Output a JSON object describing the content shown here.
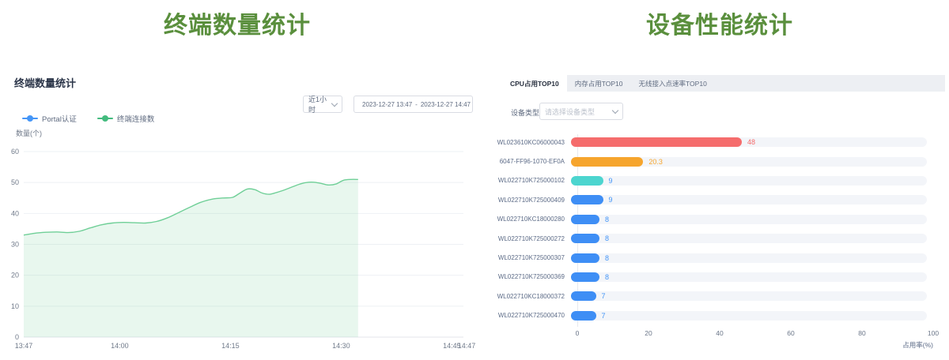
{
  "left_panel": {
    "big_title": "终端数量统计",
    "header": "终端数量统计",
    "range_select": {
      "value": "近1小时"
    },
    "date_range": {
      "start": "2023-12-27 13:47",
      "separator": "-",
      "end": "2023-12-27 14:47"
    },
    "legend": [
      {
        "label": "Portal认证",
        "color": "#4596f7"
      },
      {
        "label": "终端连接数",
        "color": "#43bb7e"
      }
    ],
    "ylabel": "数量(个)"
  },
  "right_panel": {
    "big_title": "设备性能统计",
    "tabs": [
      {
        "label": "CPU占用TOP10",
        "active": true
      },
      {
        "label": "内存占用TOP10",
        "active": false
      },
      {
        "label": "无线接入点速率TOP10",
        "active": false
      }
    ],
    "device_type_label": "设备类型",
    "device_type_placeholder": "请选择设备类型",
    "xlabel": "占用率(%)"
  },
  "chart_data": [
    {
      "type": "area",
      "title": "终端数量统计",
      "ylabel": "数量(个)",
      "ylim": [
        0,
        60
      ],
      "y_ticks": [
        "0",
        "10",
        "20",
        "30",
        "40",
        "50",
        "60"
      ],
      "x_start": "13:47",
      "x_end": "14:47",
      "x_ticks": [
        {
          "label": "13:47",
          "minute": 0
        },
        {
          "label": "14:00",
          "minute": 13
        },
        {
          "label": "14:15",
          "minute": 28
        },
        {
          "label": "14:30",
          "minute": 43
        },
        {
          "label": "14:45",
          "minute": 58
        },
        {
          "label": "14:47",
          "minute": 60
        }
      ],
      "grid": true,
      "legend_position": "top-left",
      "series": [
        {
          "name": "Portal认证",
          "color": "#4596f7",
          "points": []
        },
        {
          "name": "终端连接数",
          "color": "#6fcf97",
          "fill": "rgba(111,207,151,0.16)",
          "points": [
            [
              0,
              33
            ],
            [
              1.5,
              33.6
            ],
            [
              3,
              33.9
            ],
            [
              4.5,
              34
            ],
            [
              6,
              33.8
            ],
            [
              7.5,
              34.2
            ],
            [
              9,
              35.3
            ],
            [
              10.5,
              36.3
            ],
            [
              12,
              36.9
            ],
            [
              13.5,
              37.1
            ],
            [
              15,
              37
            ],
            [
              16.5,
              36.9
            ],
            [
              18,
              37.4
            ],
            [
              19.5,
              38.6
            ],
            [
              21,
              40.3
            ],
            [
              22.5,
              42
            ],
            [
              24,
              43.6
            ],
            [
              25.5,
              44.6
            ],
            [
              27,
              45
            ],
            [
              28.3,
              45.2
            ],
            [
              29.3,
              46.6
            ],
            [
              30.3,
              47.9
            ],
            [
              31.3,
              47.7
            ],
            [
              32.3,
              46.6
            ],
            [
              33.3,
              46.2
            ],
            [
              34.3,
              46.8
            ],
            [
              35.3,
              47.6
            ],
            [
              36.3,
              48.5
            ],
            [
              37.3,
              49.4
            ],
            [
              38.3,
              50
            ],
            [
              39.3,
              50.1
            ],
            [
              40.3,
              49.7
            ],
            [
              41.3,
              49.2
            ],
            [
              42.3,
              49.5
            ],
            [
              43.3,
              50.7
            ],
            [
              44.3,
              51
            ],
            [
              45.3,
              51
            ]
          ]
        }
      ]
    },
    {
      "type": "bar",
      "orientation": "horizontal",
      "categories": [
        "WL023610KC06000043",
        "6047-FF96-1070-EF0A",
        "WL022710K725000102",
        "WL022710K725000409",
        "WL022710KC18000280",
        "WL022710K725000272",
        "WL022710K725000307",
        "WL022710K725000369",
        "WL022710KC18000372",
        "WL022710K725000470"
      ],
      "values": [
        48,
        20.3,
        9,
        9,
        8,
        8,
        8,
        8,
        7,
        7
      ],
      "value_labels": [
        "48",
        "20.3",
        "9",
        "9",
        "8",
        "8",
        "8",
        "8",
        "7",
        "7"
      ],
      "bar_colors": [
        "#f56c6c",
        "#f6a52d",
        "#4cd5cf",
        "#3e8ef5",
        "#3e8ef5",
        "#3e8ef5",
        "#3e8ef5",
        "#3e8ef5",
        "#3e8ef5",
        "#3e8ef5"
      ],
      "value_colors": [
        "#f56c6c",
        "#f6a52d",
        "#4596f7",
        "#4596f7",
        "#4596f7",
        "#4596f7",
        "#4596f7",
        "#4596f7",
        "#4596f7",
        "#4596f7"
      ],
      "xlabel": "占用率(%)",
      "xlim": [
        0,
        100
      ],
      "x_ticks": [
        "0",
        "20",
        "40",
        "60",
        "80",
        "100"
      ]
    }
  ]
}
